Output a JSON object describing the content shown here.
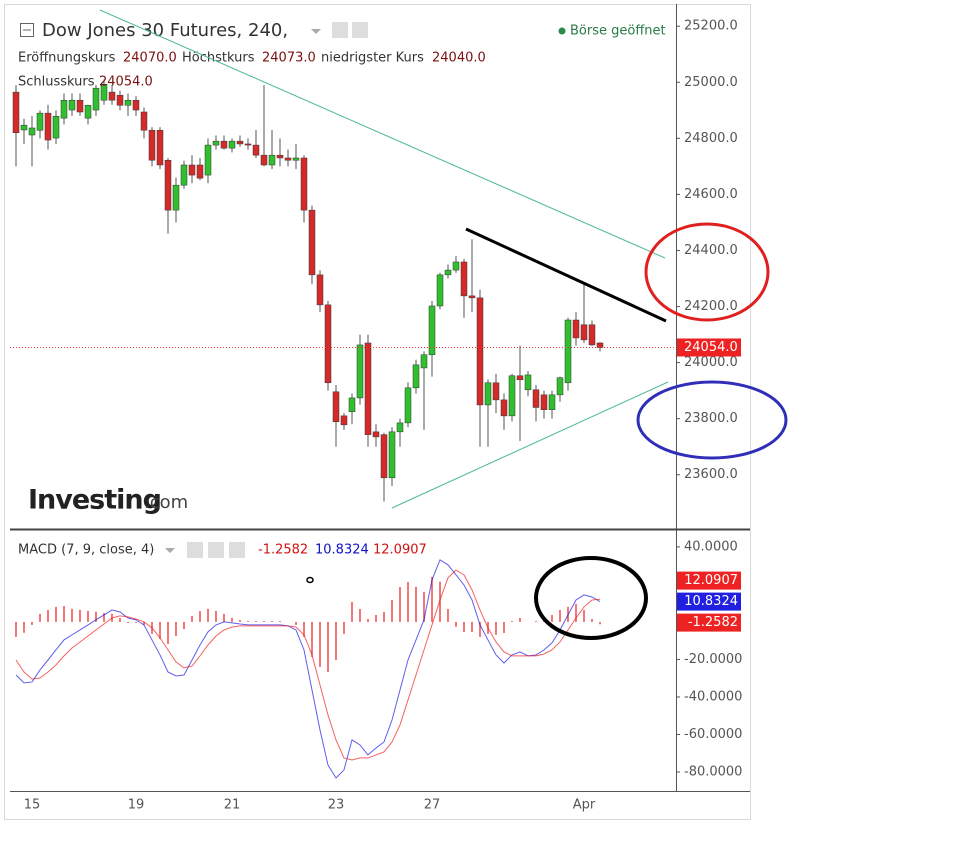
{
  "chart_data": [
    {
      "type": "candlestick",
      "title": "Dow Jones 30 Futures, 240,",
      "status": "Börse geöffnet",
      "ohlc_labels": [
        {
          "name": "Eröffnungskurs",
          "value": "24070.0"
        },
        {
          "name": "Höchstkurs",
          "value": "24073.0"
        },
        {
          "name": "niedrigster Kurs",
          "value": "24040.0"
        },
        {
          "name": "Schlusskurs",
          "value": "24054.0"
        }
      ],
      "last_price_label": "24054.0",
      "logo": "Investing",
      "logo_suffix": ".com",
      "categories": [
        null,
        null,
        "15",
        null,
        null,
        null,
        null,
        null,
        null,
        null,
        null,
        null,
        null,
        null,
        null,
        "19",
        null,
        null,
        null,
        null,
        null,
        null,
        null,
        null,
        null,
        null,
        null,
        "21",
        null,
        null,
        null,
        null,
        null,
        null,
        null,
        null,
        null,
        null,
        null,
        null,
        "23",
        null,
        null,
        null,
        null,
        null,
        null,
        null,
        null,
        null,
        null,
        null,
        "27",
        null,
        null,
        null,
        null,
        null,
        null,
        null,
        null,
        null,
        null,
        null,
        null,
        null,
        null,
        null,
        null,
        null,
        null,
        "Apr",
        null,
        null
      ],
      "open": [
        24965,
        24830,
        24812,
        24829,
        24890,
        24801,
        24872,
        24901,
        24936,
        24872,
        24901,
        24936,
        24965,
        24954,
        24918,
        24936,
        24894,
        24829,
        24829,
        24722,
        24544,
        24633,
        24705,
        24705,
        24669,
        24776,
        24790,
        24765,
        24790,
        24780,
        24776,
        24740,
        24705,
        24740,
        24730,
        24722,
        24730,
        24544,
        24313,
        24206,
        23896,
        23810,
        23825,
        23874,
        24070,
        23753,
        23743,
        23589,
        23753,
        23785,
        23910,
        23981,
        24028,
        24202,
        24313,
        24330,
        24359,
        24238,
        24231,
        23849,
        23928,
        23867,
        23810,
        23953,
        23903,
        23903,
        23885,
        23832,
        23885,
        23928,
        24152,
        24135,
        24135,
        24070
      ],
      "high": [
        24990,
        24870,
        24880,
        24900,
        24920,
        24900,
        24960,
        24960,
        24960,
        24920,
        24990,
        25010,
        24990,
        24970,
        24960,
        24950,
        24910,
        24840,
        24840,
        24730,
        24660,
        24720,
        24740,
        24730,
        24800,
        24810,
        24810,
        24800,
        24810,
        24800,
        24830,
        24990,
        24830,
        24800,
        24760,
        24780,
        24740,
        24560,
        24330,
        24220,
        23920,
        23820,
        23890,
        24100,
        24100,
        23780,
        23750,
        23770,
        23800,
        23930,
        24010,
        24040,
        24220,
        24320,
        24350,
        24380,
        24370,
        24440,
        24260,
        23940,
        23960,
        23890,
        23960,
        24060,
        23970,
        23920,
        23900,
        23900,
        23950,
        24160,
        24180,
        24285,
        24150,
        24073
      ],
      "low": [
        24700,
        24780,
        24700,
        24800,
        24760,
        24780,
        24850,
        24880,
        24880,
        24850,
        24880,
        24920,
        24920,
        24900,
        24880,
        24880,
        24800,
        24700,
        24690,
        24460,
        24500,
        24620,
        24640,
        24650,
        24640,
        24760,
        24760,
        24750,
        24770,
        24760,
        24730,
        24700,
        24690,
        24700,
        24700,
        24690,
        24500,
        24280,
        24180,
        23900,
        23700,
        23760,
        23780,
        23850,
        23700,
        23700,
        23504,
        23560,
        23700,
        23770,
        23890,
        23760,
        23950,
        24190,
        24300,
        24320,
        24160,
        24180,
        23700,
        23700,
        23820,
        23760,
        23790,
        23720,
        23880,
        23790,
        23800,
        23800,
        23860,
        23900,
        24060,
        24070,
        24060,
        24040
      ],
      "close": [
        24820,
        24847,
        24837,
        24890,
        24794,
        24879,
        24936,
        24936,
        24894,
        24918,
        24979,
        24993,
        24936,
        24918,
        24936,
        24901,
        24829,
        24722,
        24705,
        24544,
        24633,
        24705,
        24669,
        24658,
        24776,
        24790,
        24765,
        24790,
        24780,
        24776,
        24740,
        24705,
        24740,
        24730,
        24722,
        24730,
        24544,
        24313,
        24206,
        23928,
        23789,
        23778,
        23874,
        24063,
        23743,
        23735,
        23589,
        23753,
        23785,
        23910,
        23992,
        24028,
        24202,
        24313,
        24330,
        24359,
        24238,
        24231,
        23849,
        23928,
        23867,
        23810,
        23953,
        23939,
        23956,
        23840,
        23832,
        23885,
        23946,
        24152,
        24088,
        24081,
        24063,
        24054
      ],
      "up_color": "#2fbf2f",
      "down_color": "#d42a2a",
      "ylim": [
        23410,
        25265
      ],
      "yticks": [
        {
          "value": 25200,
          "label": "25200.0"
        },
        {
          "value": 25000,
          "label": "25000.0"
        },
        {
          "value": 24800,
          "label": "24800.0"
        },
        {
          "value": 24600,
          "label": "24600.0"
        },
        {
          "value": 24400,
          "label": "24400.0"
        },
        {
          "value": 24200,
          "label": "24200.0"
        },
        {
          "value": 24000,
          "label": "24000.0"
        },
        {
          "value": 23800,
          "label": "23800.0"
        },
        {
          "value": 23600,
          "label": "23600.0"
        }
      ]
    },
    {
      "type": "macd",
      "title": "MACD (7, 9, close, 4)",
      "series": [
        {
          "kind": "histogram",
          "color": "#f04848",
          "values": [
            -8,
            -5.8,
            -1.6,
            4.3,
            6.4,
            8,
            8.5,
            7,
            6.4,
            5.9,
            5.4,
            4.8,
            4.3,
            2.1,
            -0.6,
            -0.5,
            -1.6,
            -6.4,
            -9.1,
            -11.8,
            -7.5,
            -3.8,
            3.2,
            5.8,
            7,
            5.9,
            4.3,
            2.2,
            1,
            0.5,
            0.5,
            0.5,
            0.5,
            0.5,
            0,
            -1.6,
            -8,
            -18.7,
            -24,
            -26.7,
            -20.3,
            -6.4,
            10.7,
            6.9,
            1.6,
            3.7,
            5.3,
            11.7,
            18.6,
            21.3,
            18.7,
            16,
            24,
            21.4,
            6.9,
            -2.6,
            -5.4,
            -5.4,
            -8,
            -6.4,
            -6.9,
            -5.9,
            0.5,
            2.1,
            0,
            0.5,
            2.2,
            3.7,
            6.4,
            8,
            9.6,
            6.4,
            1.6,
            -1.2582
          ]
        },
        {
          "kind": "line",
          "color": "#1a1ae6",
          "values": [
            -28.3,
            -32.5,
            -32,
            -25.6,
            -20.3,
            -14.9,
            -9.6,
            -6.9,
            -4.3,
            -1.6,
            1.1,
            3.7,
            6.4,
            5.3,
            2.1,
            1.1,
            -1.6,
            -9.6,
            -17.6,
            -26.7,
            -28.8,
            -28.3,
            -20.3,
            -12.3,
            -5.3,
            -1.6,
            0,
            -0.5,
            -1.1,
            -1.6,
            -1.6,
            -1.6,
            -1.6,
            -1.6,
            -2.1,
            -4.3,
            -14.9,
            -36.3,
            -57.6,
            -76.3,
            -83.2,
            -78.9,
            -62.9,
            -65.6,
            -70.9,
            -67.2,
            -64,
            -52.3,
            -36.3,
            -20.3,
            -9.6,
            1.1,
            22.4,
            33.1,
            30.4,
            25.1,
            19.7,
            11.7,
            -1.6,
            -9.6,
            -17.6,
            -21.9,
            -17.6,
            -16,
            -18.1,
            -17.6,
            -14.9,
            -11.2,
            -4.3,
            3.7,
            11.7,
            14.4,
            13.3,
            10.8324
          ]
        },
        {
          "kind": "line",
          "color": "#f02020",
          "values": [
            -20.3,
            -26.7,
            -30.4,
            -29.9,
            -26.7,
            -22.9,
            -18.1,
            -13.9,
            -10.7,
            -7.5,
            -4.3,
            -1.1,
            2.1,
            3.2,
            2.7,
            1.6,
            0,
            -3.2,
            -8.5,
            -14.9,
            -21.3,
            -24.5,
            -23.5,
            -18.1,
            -12.3,
            -7.5,
            -4.3,
            -2.7,
            -2.1,
            -2.1,
            -2.1,
            -2.1,
            -2.1,
            -2.1,
            -2.1,
            -2.7,
            -6.9,
            -17.6,
            -33.6,
            -49.6,
            -62.9,
            -72.5,
            -73.6,
            -72.5,
            -72.5,
            -70.9,
            -69.3,
            -64,
            -54.9,
            -41.6,
            -28.3,
            -14.9,
            -1.6,
            11.7,
            23.5,
            27.7,
            25.1,
            17.1,
            6.4,
            -3.2,
            -10.7,
            -16,
            -18.1,
            -18.1,
            -18.1,
            -18.1,
            -17.1,
            -14.9,
            -10.7,
            -4.3,
            2.1,
            8,
            11.7,
            12.0907
          ]
        }
      ],
      "ylim": [
        -89.6,
        49
      ],
      "yticks": [
        {
          "value": 40,
          "label": "40.0000"
        },
        {
          "value": -20,
          "label": "-20.0000"
        },
        {
          "value": -40,
          "label": "-40.0000"
        },
        {
          "value": -60,
          "label": "-60.0000"
        },
        {
          "value": -80,
          "label": "-80.0000"
        }
      ]
    }
  ]
}
